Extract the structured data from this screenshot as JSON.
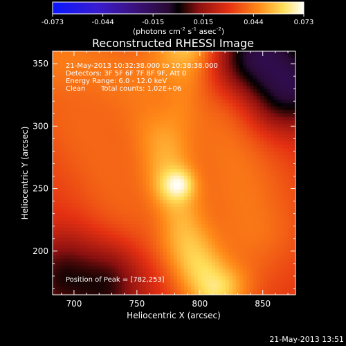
{
  "chart_data": {
    "type": "heatmap",
    "title": "Reconstructed RHESSI Image",
    "xlabel": "Heliocentric X (arcsec)",
    "ylabel": "Heliocentric Y (arcsec)",
    "xlim": [
      683,
      876
    ],
    "ylim": [
      165,
      360
    ],
    "x_ticks": [
      700,
      750,
      800,
      850
    ],
    "y_ticks": [
      200,
      250,
      300,
      350
    ],
    "colorbar": {
      "ticks": [
        "-0.073",
        "-0.044",
        "-0.015",
        "0.015",
        "0.044",
        "0.073"
      ],
      "range": [
        -0.073,
        0.073
      ],
      "units_label": "(photons cm",
      "units_exp1": "-2",
      "units_mid": " s",
      "units_exp2": "-1",
      "units_mid2": " asec",
      "units_exp3": "-2",
      "units_end": ")"
    },
    "annotations": {
      "line1": "21-May-2013 10:32:38.000 to 10:38:38.000",
      "line2": "Detectors: 3F 5F 6F 7F 8F 9F, Att 0",
      "line3": "Energy Range: 6.0 - 12.0 keV",
      "line4_left": "Clean",
      "line4_right": "Total counts: 1.02E+06",
      "peak_label": "Position of Peak = [782,253]"
    },
    "peak": {
      "x": 782,
      "y": 253,
      "value": 0.073
    },
    "features": [
      {
        "name": "main-ridge",
        "points": [
          [
            790,
            360
          ],
          [
            770,
            300
          ],
          [
            770,
            255
          ],
          [
            785,
            215
          ],
          [
            812,
            175
          ]
        ],
        "value": 0.07,
        "width": 18
      },
      {
        "name": "upper-left-loop",
        "points": [
          [
            695,
            350
          ],
          [
            730,
            335
          ],
          [
            765,
            325
          ]
        ],
        "value": 0.045,
        "width": 28
      },
      {
        "name": "left-lobe",
        "points": [
          [
            710,
            300
          ],
          [
            730,
            265
          ],
          [
            745,
            225
          ]
        ],
        "value": 0.04,
        "width": 30
      },
      {
        "name": "right-lobe",
        "points": [
          [
            820,
            310
          ],
          [
            830,
            260
          ],
          [
            840,
            220
          ]
        ],
        "value": 0.043,
        "width": 30
      },
      {
        "name": "dark-upper-right",
        "points": [
          [
            850,
            355
          ],
          [
            870,
            335
          ]
        ],
        "value": -0.012,
        "width": 25
      },
      {
        "name": "dark-lower-left",
        "points": [
          [
            695,
            178
          ],
          [
            720,
            172
          ]
        ],
        "value": 0.002,
        "width": 25
      }
    ],
    "background_value": 0.03
  },
  "footer": {
    "timestamp": "21-May-2013 13:51"
  }
}
